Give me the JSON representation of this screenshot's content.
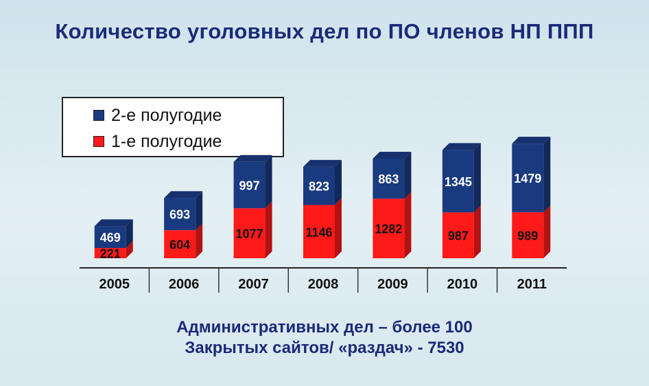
{
  "title": "Количество уголовных дел по ПО членов НП ППП",
  "legend": {
    "items": [
      {
        "label": "2-е полугодие",
        "color": "#1a3a80"
      },
      {
        "label": "1-е полугодие",
        "color": "#ff1a1a"
      }
    ]
  },
  "chart_data": {
    "type": "bar",
    "stacked": true,
    "categories": [
      "2005",
      "2006",
      "2007",
      "2008",
      "2009",
      "2010",
      "2011"
    ],
    "series": [
      {
        "name": "1-е полугодие",
        "color": "#ff1a1a",
        "values": [
          221,
          604,
          1077,
          1146,
          1282,
          987,
          989
        ]
      },
      {
        "name": "2-е полугодие",
        "color": "#1a3a80",
        "values": [
          469,
          693,
          997,
          823,
          863,
          1345,
          1479
        ]
      }
    ],
    "ylim": [
      0,
      2500
    ],
    "grid": false,
    "legend_position": "top-left"
  },
  "footer": {
    "line1": "Административных дел – более 100",
    "line2": "Закрытых сайтов/ «раздач» - 7530"
  }
}
